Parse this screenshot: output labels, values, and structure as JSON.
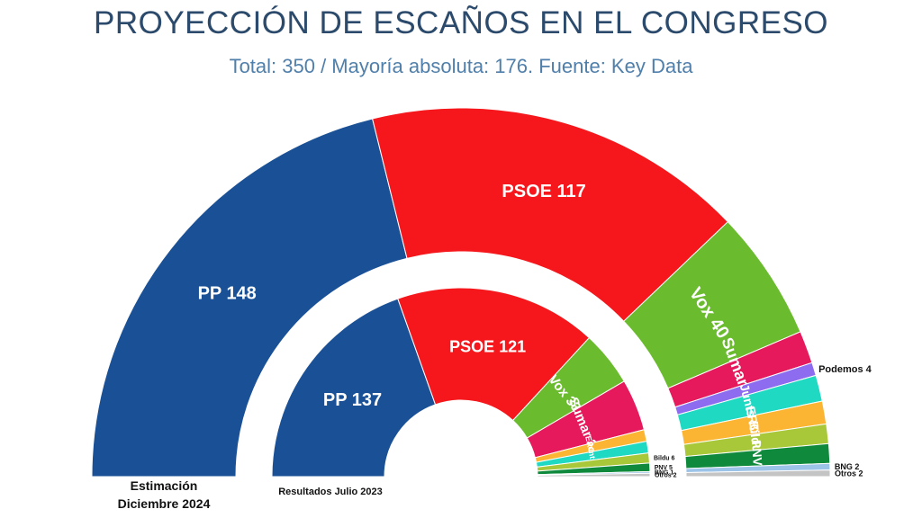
{
  "chart_data": {
    "type": "pie",
    "title": "PROYECCIÓN DE ESCAÑOS EN EL CONGRESO",
    "subtitle": "Total: 350 / Mayoría absoluta: 176. Fuente: Key Data",
    "rings": [
      {
        "caption": [
          "Estimación",
          "Diciembre 2024"
        ],
        "parties": [
          {
            "party": "PP",
            "seats": 148,
            "color": "#1a5096"
          },
          {
            "party": "PSOE",
            "seats": 117,
            "color": "#f5171b"
          },
          {
            "party": "Vox",
            "seats": 40,
            "color": "#6bbb2e"
          },
          {
            "party": "Sumar",
            "seats": 10,
            "color": "#e5195b"
          },
          {
            "party": "Podemos",
            "seats": 4,
            "color": "#8d6cf0"
          },
          {
            "party": "Junts",
            "seats": 8,
            "color": "#1fd9c3"
          },
          {
            "party": "ERC",
            "seats": 7,
            "color": "#fbb533"
          },
          {
            "party": "Bildu",
            "seats": 6,
            "color": "#a8c83a"
          },
          {
            "party": "PNV",
            "seats": 6,
            "color": "#0f8a3c"
          },
          {
            "party": "BNG",
            "seats": 2,
            "color": "#9cc3e8"
          },
          {
            "party": "Otros",
            "seats": 2,
            "color": "#c4c4c4"
          }
        ]
      },
      {
        "caption": [
          "Resultados Julio 2023"
        ],
        "parties": [
          {
            "party": "PP",
            "seats": 137,
            "color": "#1a5096"
          },
          {
            "party": "PSOE",
            "seats": 121,
            "color": "#f5171b"
          },
          {
            "party": "Vox",
            "seats": 33,
            "color": "#6bbb2e"
          },
          {
            "party": "Sumar",
            "seats": 31,
            "color": "#e5195b"
          },
          {
            "party": "ERC",
            "seats": 7,
            "color": "#fbb533"
          },
          {
            "party": "Junts",
            "seats": 7,
            "color": "#1fd9c3"
          },
          {
            "party": "Bildu",
            "seats": 6,
            "color": "#a8c83a"
          },
          {
            "party": "PNV",
            "seats": 5,
            "color": "#0f8a3c"
          },
          {
            "party": "BNG",
            "seats": 1,
            "color": "#9cc3e8"
          },
          {
            "party": "Otros",
            "seats": 2,
            "color": "#c4c4c4"
          }
        ]
      }
    ]
  }
}
